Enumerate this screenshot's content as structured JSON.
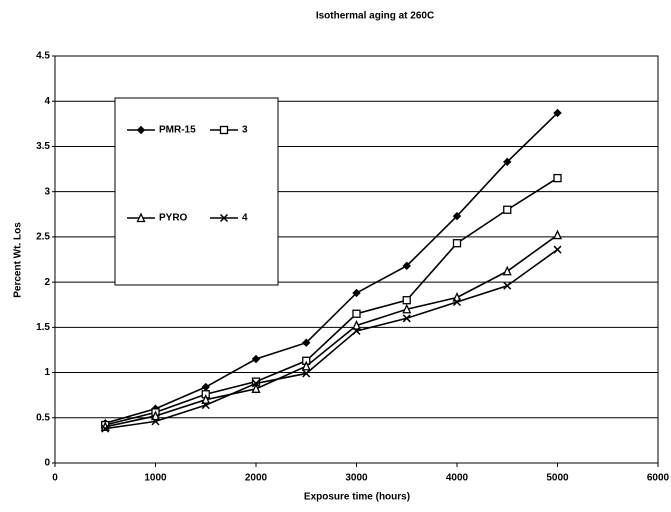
{
  "chart_data": {
    "type": "line",
    "title": "Isothermal aging at 260C",
    "x_label": "Exposure time (hours)",
    "y_label": "Percent Wt. Los",
    "x": [
      500,
      1000,
      1500,
      2000,
      2500,
      3000,
      3500,
      4000,
      4500,
      5000
    ],
    "series": [
      {
        "name": "PMR-15",
        "color": "#000000",
        "marker": "diamond",
        "values": [
          0.44,
          0.6,
          0.84,
          1.15,
          1.33,
          1.88,
          2.18,
          2.73,
          3.33,
          3.87
        ]
      },
      {
        "name": "3",
        "color": "#000000",
        "marker": "square",
        "values": [
          0.42,
          0.56,
          0.76,
          0.9,
          1.13,
          1.65,
          1.8,
          2.43,
          2.8,
          3.15
        ]
      },
      {
        "name": "PYRO",
        "color": "#000000",
        "marker": "triangle",
        "values": [
          0.4,
          0.52,
          0.7,
          0.82,
          1.07,
          1.52,
          1.7,
          1.83,
          2.12,
          2.52
        ]
      },
      {
        "name": "4",
        "color": "#000000",
        "marker": "x",
        "values": [
          0.38,
          0.46,
          0.64,
          0.88,
          0.99,
          1.46,
          1.6,
          1.78,
          1.96,
          2.36
        ]
      }
    ],
    "xlim": [
      0,
      6000
    ],
    "xticks": [
      0,
      1000,
      2000,
      3000,
      4000,
      5000,
      6000
    ],
    "ylim": [
      0,
      4.5
    ],
    "yticks": [
      0,
      0.5,
      1,
      1.5,
      2,
      2.5,
      3,
      3.5,
      4,
      4.5
    ],
    "grid": true,
    "legend": "upper left"
  }
}
